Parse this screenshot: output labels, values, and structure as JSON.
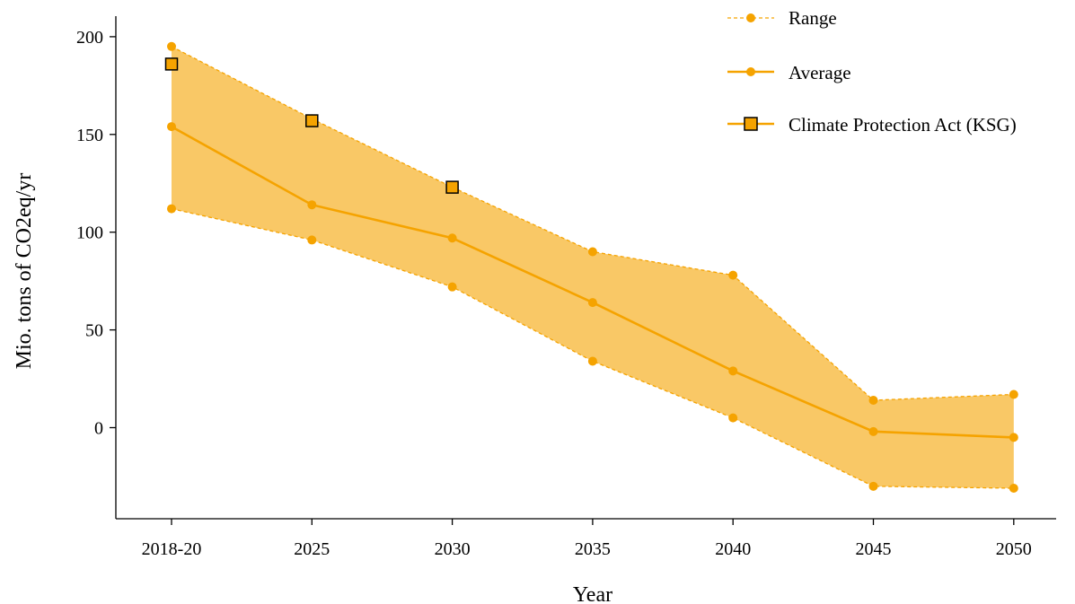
{
  "colors": {
    "line": "#f5a300",
    "fill": "#f9c866",
    "marker_fill": "#f5a300",
    "ksg_marker_fill": "#f5a300",
    "ksg_marker_stroke": "#000000",
    "axis": "#000000"
  },
  "chart_data": {
    "type": "line",
    "xlabel": "Year",
    "ylabel": "Mio. tons of CO2eq/yr",
    "categories": [
      "2018-20",
      "2025",
      "2030",
      "2035",
      "2040",
      "2045",
      "2050"
    ],
    "ylim": [
      -47,
      210
    ],
    "yticks": [
      0,
      50,
      100,
      150,
      200
    ],
    "grid": false,
    "legend_position": "top-right",
    "series": [
      {
        "name": "Range",
        "kind": "range-upper",
        "values": [
          195,
          158,
          123,
          90,
          78,
          14,
          17
        ]
      },
      {
        "name": "Range",
        "kind": "range-lower",
        "values": [
          112,
          96,
          72,
          34,
          5,
          -30,
          -31
        ]
      },
      {
        "name": "Average",
        "kind": "line",
        "values": [
          154,
          114,
          97,
          64,
          29,
          -2,
          -5
        ]
      },
      {
        "name": "Climate Protection Act (KSG)",
        "kind": "markers",
        "values": [
          186,
          157,
          123,
          null,
          null,
          null,
          null
        ]
      }
    ],
    "legend": [
      {
        "label": "Range",
        "style": "dashed"
      },
      {
        "label": "Average",
        "style": "solid"
      },
      {
        "label": "Climate Protection Act (KSG)",
        "style": "square"
      }
    ]
  }
}
